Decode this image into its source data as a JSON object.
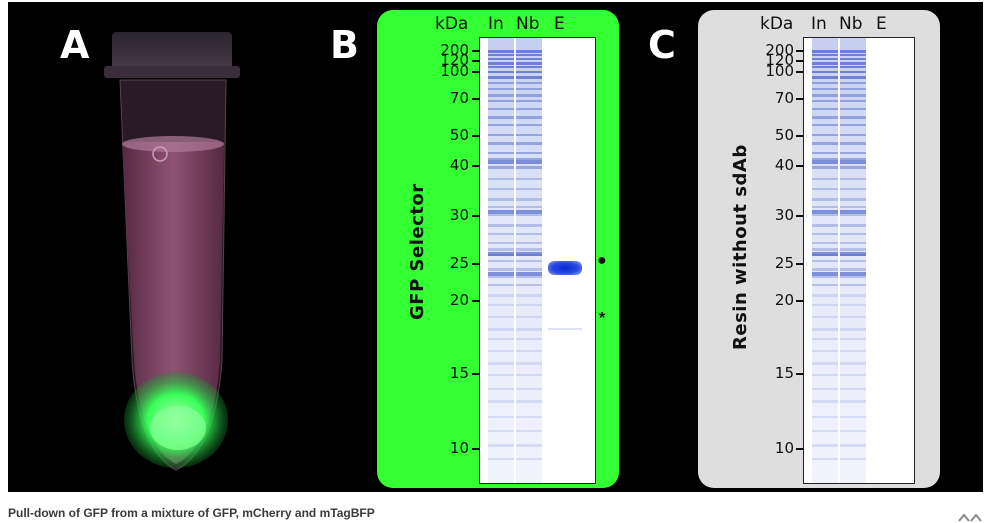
{
  "figure": {
    "panel_a": {
      "letter": "A"
    },
    "panel_b": {
      "letter": "B",
      "side_label": "GFP Selector",
      "unit_label": "kDa",
      "lanes": [
        "In",
        "Nb",
        "E"
      ],
      "markers": [
        "200",
        "120",
        "100",
        "70",
        "50",
        "40",
        "30",
        "25",
        "20",
        "15",
        "10"
      ],
      "dot_symbol": "●",
      "star_symbol": "*",
      "panel_color": "#33ff33"
    },
    "panel_c": {
      "letter": "C",
      "side_label": "Resin without sdAb",
      "unit_label": "kDa",
      "lanes": [
        "In",
        "Nb",
        "E"
      ],
      "markers": [
        "200",
        "120",
        "100",
        "70",
        "50",
        "40",
        "30",
        "25",
        "20",
        "15",
        "10"
      ],
      "panel_color": "#dedede"
    }
  },
  "caption": "Pull-down of GFP from a mixture of GFP, mCherry and mTagBFP",
  "colors": {
    "gel_band": "#5a73d6",
    "gfp_glow": "#39ff5a",
    "tube_pink": "#8a4a6a"
  }
}
